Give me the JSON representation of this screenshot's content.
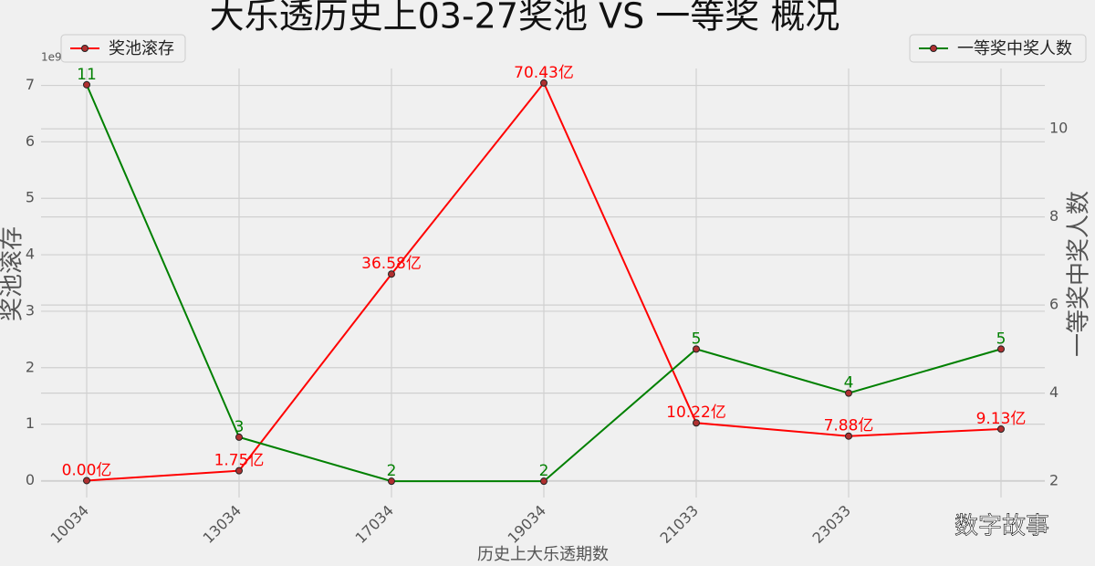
{
  "chart_data": {
    "type": "line",
    "title": "大乐透历史上03-27奖池 VS 一等奖 概况",
    "xlabel": "历史上大乐透期数",
    "ylabel": "奖池滚存",
    "y2label": "一等奖中奖人数",
    "y_offset_label": "1e9",
    "categories": [
      "10034",
      "13034",
      "17034",
      "19034",
      "21033",
      "23033",
      null
    ],
    "series": [
      {
        "name": "奖池滚存",
        "color": "#ff0000",
        "legend": "upper left",
        "values": [
          0,
          0.175,
          3.658,
          7.043,
          1.022,
          0.788,
          0.913
        ],
        "value_labels": [
          "0.00亿",
          "1.75亿",
          "36.58亿",
          "70.43亿",
          "10.22亿",
          "7.88亿",
          "9.13亿"
        ]
      },
      {
        "name": "一等奖中奖人数",
        "color": "#008000",
        "axis": "y2",
        "legend": "upper right",
        "values": [
          11,
          3,
          2,
          2,
          5,
          4,
          5
        ]
      }
    ],
    "ylim": [
      -0.3,
      7.3
    ],
    "yticks": [
      0,
      1,
      2,
      3,
      4,
      5,
      6,
      7
    ],
    "y2lim": [
      1.63,
      11.37
    ],
    "y2ticks": [
      2,
      4,
      6,
      8,
      10
    ],
    "grid": true
  },
  "watermark": "数字故事"
}
